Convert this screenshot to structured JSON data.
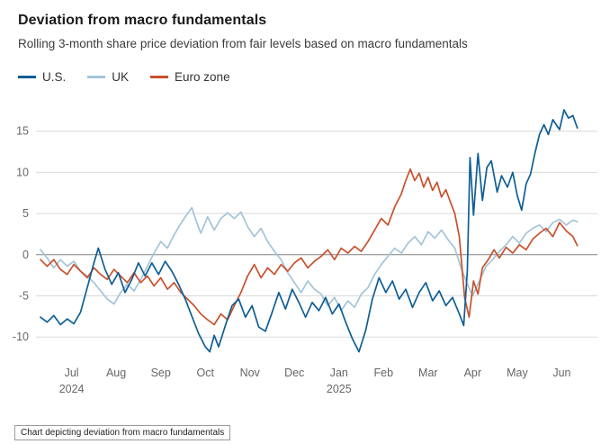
{
  "page": {
    "title": "Deviation from macro fundamentals",
    "subtitle": "Rolling 3-month share price deviation from fair levels based on macro fundamentals",
    "footnote": "Chart depicting deviation from macro fundamentals"
  },
  "colors": {
    "us": "#0f5e95",
    "uk": "#a3c4d9",
    "euro_zone": "#c9502c",
    "grid": "#dadada",
    "zero_line": "#808080",
    "axis_text": "#666666",
    "title_text": "#1a1a1a",
    "subtitle_text": "#3c3c3c"
  },
  "chart_data": {
    "type": "line",
    "title": "Deviation from macro fundamentals",
    "subtitle": "Rolling 3-month share price deviation from fair levels based on macro fundamentals",
    "x_unit": "months since July 2024 (0 = Jul 2024)",
    "x_tick_labels": [
      "Jul",
      "Aug",
      "Sep",
      "Oct",
      "Nov",
      "Dec",
      "Jan",
      "Feb",
      "Mar",
      "Apr",
      "May",
      "Jun"
    ],
    "year_labels": [
      {
        "label": "2024",
        "month_index": 0
      },
      {
        "label": "2025",
        "month_index": 6
      }
    ],
    "y_ticks": [
      -10,
      -5,
      0,
      5,
      10,
      15
    ],
    "ylim": [
      -12.5,
      18.8
    ],
    "xlim": [
      -0.3,
      12.3
    ],
    "grid": "horizontal",
    "legend_position": "top-left",
    "series": [
      {
        "name": "U.S.",
        "color": "#0f5e95",
        "points": [
          [
            -0.2,
            -7.6
          ],
          [
            -0.05,
            -8.2
          ],
          [
            0.1,
            -7.4
          ],
          [
            0.25,
            -8.5
          ],
          [
            0.4,
            -7.8
          ],
          [
            0.55,
            -8.4
          ],
          [
            0.7,
            -7.0
          ],
          [
            0.85,
            -4.0
          ],
          [
            1.0,
            -1.0
          ],
          [
            1.1,
            0.8
          ],
          [
            1.25,
            -1.8
          ],
          [
            1.4,
            -3.6
          ],
          [
            1.55,
            -2.2
          ],
          [
            1.7,
            -4.6
          ],
          [
            1.85,
            -3.0
          ],
          [
            2.0,
            -1.0
          ],
          [
            2.15,
            -2.6
          ],
          [
            2.3,
            -1.0
          ],
          [
            2.45,
            -2.4
          ],
          [
            2.6,
            -0.8
          ],
          [
            2.75,
            -2.0
          ],
          [
            2.9,
            -3.6
          ],
          [
            3.05,
            -5.4
          ],
          [
            3.2,
            -7.5
          ],
          [
            3.35,
            -9.6
          ],
          [
            3.5,
            -11.2
          ],
          [
            3.6,
            -11.8
          ],
          [
            3.7,
            -9.8
          ],
          [
            3.8,
            -11.2
          ],
          [
            3.95,
            -8.6
          ],
          [
            4.1,
            -6.2
          ],
          [
            4.25,
            -5.4
          ],
          [
            4.4,
            -7.6
          ],
          [
            4.55,
            -6.2
          ],
          [
            4.7,
            -8.8
          ],
          [
            4.85,
            -9.3
          ],
          [
            5.0,
            -7.0
          ],
          [
            5.15,
            -4.6
          ],
          [
            5.3,
            -6.6
          ],
          [
            5.45,
            -4.2
          ],
          [
            5.6,
            -5.8
          ],
          [
            5.75,
            -7.6
          ],
          [
            5.9,
            -5.8
          ],
          [
            6.05,
            -6.8
          ],
          [
            6.2,
            -5.2
          ],
          [
            6.35,
            -7.2
          ],
          [
            6.5,
            -6.0
          ],
          [
            6.65,
            -8.2
          ],
          [
            6.8,
            -10.2
          ],
          [
            6.95,
            -11.8
          ],
          [
            7.1,
            -9.2
          ],
          [
            7.25,
            -5.4
          ],
          [
            7.4,
            -2.8
          ],
          [
            7.55,
            -4.6
          ],
          [
            7.7,
            -3.2
          ],
          [
            7.85,
            -5.4
          ],
          [
            8.0,
            -4.2
          ],
          [
            8.15,
            -6.4
          ],
          [
            8.3,
            -4.6
          ],
          [
            8.45,
            -3.4
          ],
          [
            8.6,
            -5.6
          ],
          [
            8.75,
            -4.4
          ],
          [
            8.9,
            -6.2
          ],
          [
            9.05,
            -5.2
          ],
          [
            9.2,
            -7.2
          ],
          [
            9.3,
            -8.6
          ],
          [
            9.38,
            -2.0
          ],
          [
            9.44,
            11.8
          ],
          [
            9.52,
            4.8
          ],
          [
            9.62,
            12.3
          ],
          [
            9.72,
            6.6
          ],
          [
            9.82,
            10.6
          ],
          [
            9.92,
            11.4
          ],
          [
            10.05,
            7.6
          ],
          [
            10.15,
            9.6
          ],
          [
            10.28,
            8.2
          ],
          [
            10.4,
            10.0
          ],
          [
            10.5,
            7.2
          ],
          [
            10.6,
            5.4
          ],
          [
            10.7,
            8.6
          ],
          [
            10.8,
            9.8
          ],
          [
            10.9,
            12.4
          ],
          [
            11.0,
            14.6
          ],
          [
            11.1,
            15.8
          ],
          [
            11.2,
            14.6
          ],
          [
            11.3,
            16.4
          ],
          [
            11.45,
            15.2
          ],
          [
            11.55,
            17.6
          ],
          [
            11.65,
            16.6
          ],
          [
            11.75,
            16.9
          ],
          [
            11.85,
            15.4
          ]
        ]
      },
      {
        "name": "UK",
        "color": "#a3c4d9",
        "points": [
          [
            -0.2,
            0.6
          ],
          [
            -0.05,
            -0.4
          ],
          [
            0.1,
            -1.6
          ],
          [
            0.25,
            -0.6
          ],
          [
            0.4,
            -1.4
          ],
          [
            0.55,
            -0.8
          ],
          [
            0.7,
            -2.0
          ],
          [
            0.85,
            -2.6
          ],
          [
            1.0,
            -3.4
          ],
          [
            1.15,
            -4.4
          ],
          [
            1.3,
            -5.4
          ],
          [
            1.45,
            -6.0
          ],
          [
            1.6,
            -4.6
          ],
          [
            1.75,
            -3.6
          ],
          [
            1.9,
            -4.4
          ],
          [
            2.05,
            -3.0
          ],
          [
            2.2,
            -1.4
          ],
          [
            2.35,
            0.2
          ],
          [
            2.5,
            1.6
          ],
          [
            2.65,
            0.8
          ],
          [
            2.8,
            2.4
          ],
          [
            2.95,
            3.8
          ],
          [
            3.1,
            5.0
          ],
          [
            3.2,
            5.7
          ],
          [
            3.3,
            4.0
          ],
          [
            3.4,
            2.6
          ],
          [
            3.55,
            4.6
          ],
          [
            3.7,
            3.0
          ],
          [
            3.85,
            4.4
          ],
          [
            4.0,
            5.1
          ],
          [
            4.15,
            4.4
          ],
          [
            4.3,
            5.2
          ],
          [
            4.45,
            3.4
          ],
          [
            4.6,
            2.2
          ],
          [
            4.75,
            3.2
          ],
          [
            4.9,
            1.6
          ],
          [
            5.05,
            0.4
          ],
          [
            5.2,
            -0.6
          ],
          [
            5.35,
            -2.2
          ],
          [
            5.5,
            -3.4
          ],
          [
            5.65,
            -4.6
          ],
          [
            5.8,
            -3.2
          ],
          [
            5.95,
            -4.2
          ],
          [
            6.1,
            -4.8
          ],
          [
            6.25,
            -6.2
          ],
          [
            6.4,
            -5.2
          ],
          [
            6.55,
            -6.8
          ],
          [
            6.7,
            -5.6
          ],
          [
            6.85,
            -6.4
          ],
          [
            7.0,
            -4.8
          ],
          [
            7.15,
            -4.0
          ],
          [
            7.3,
            -2.4
          ],
          [
            7.45,
            -1.2
          ],
          [
            7.6,
            -0.2
          ],
          [
            7.75,
            0.8
          ],
          [
            7.9,
            0.2
          ],
          [
            8.05,
            1.4
          ],
          [
            8.2,
            2.2
          ],
          [
            8.35,
            1.2
          ],
          [
            8.5,
            2.8
          ],
          [
            8.65,
            2.0
          ],
          [
            8.8,
            3.0
          ],
          [
            8.95,
            1.8
          ],
          [
            9.1,
            0.8
          ],
          [
            9.25,
            -1.8
          ],
          [
            9.4,
            -3.8
          ],
          [
            9.5,
            -5.0
          ],
          [
            9.65,
            -3.2
          ],
          [
            9.8,
            -1.4
          ],
          [
            9.95,
            -0.6
          ],
          [
            10.1,
            0.4
          ],
          [
            10.25,
            1.2
          ],
          [
            10.4,
            2.2
          ],
          [
            10.55,
            1.4
          ],
          [
            10.7,
            2.6
          ],
          [
            10.85,
            3.2
          ],
          [
            11.0,
            3.6
          ],
          [
            11.15,
            2.8
          ],
          [
            11.3,
            3.9
          ],
          [
            11.45,
            4.3
          ],
          [
            11.6,
            3.6
          ],
          [
            11.75,
            4.2
          ],
          [
            11.85,
            4.0
          ]
        ]
      },
      {
        "name": "Euro zone",
        "color": "#c9502c",
        "points": [
          [
            -0.2,
            -0.6
          ],
          [
            -0.05,
            -1.4
          ],
          [
            0.1,
            -0.6
          ],
          [
            0.25,
            -1.8
          ],
          [
            0.4,
            -2.4
          ],
          [
            0.55,
            -1.2
          ],
          [
            0.7,
            -2.0
          ],
          [
            0.85,
            -2.8
          ],
          [
            1.0,
            -1.6
          ],
          [
            1.15,
            -2.4
          ],
          [
            1.3,
            -3.0
          ],
          [
            1.45,
            -1.8
          ],
          [
            1.6,
            -2.6
          ],
          [
            1.75,
            -3.4
          ],
          [
            1.9,
            -2.2
          ],
          [
            2.05,
            -3.4
          ],
          [
            2.2,
            -2.6
          ],
          [
            2.35,
            -3.8
          ],
          [
            2.5,
            -2.8
          ],
          [
            2.65,
            -4.2
          ],
          [
            2.8,
            -3.4
          ],
          [
            2.95,
            -4.6
          ],
          [
            3.1,
            -5.4
          ],
          [
            3.25,
            -6.2
          ],
          [
            3.4,
            -7.2
          ],
          [
            3.55,
            -7.9
          ],
          [
            3.7,
            -8.5
          ],
          [
            3.85,
            -7.2
          ],
          [
            4.0,
            -7.9
          ],
          [
            4.15,
            -6.2
          ],
          [
            4.3,
            -4.6
          ],
          [
            4.45,
            -2.6
          ],
          [
            4.6,
            -1.2
          ],
          [
            4.75,
            -2.8
          ],
          [
            4.9,
            -1.6
          ],
          [
            5.05,
            -2.4
          ],
          [
            5.2,
            -1.2
          ],
          [
            5.35,
            -2.0
          ],
          [
            5.5,
            -1.0
          ],
          [
            5.65,
            -0.4
          ],
          [
            5.8,
            -1.6
          ],
          [
            5.95,
            -0.8
          ],
          [
            6.1,
            -0.2
          ],
          [
            6.25,
            0.6
          ],
          [
            6.4,
            -0.6
          ],
          [
            6.55,
            0.8
          ],
          [
            6.7,
            0.2
          ],
          [
            6.85,
            1.0
          ],
          [
            7.0,
            0.4
          ],
          [
            7.15,
            1.6
          ],
          [
            7.3,
            3.0
          ],
          [
            7.45,
            4.4
          ],
          [
            7.6,
            3.6
          ],
          [
            7.75,
            5.8
          ],
          [
            7.9,
            7.4
          ],
          [
            8.0,
            9.0
          ],
          [
            8.1,
            10.4
          ],
          [
            8.2,
            9.0
          ],
          [
            8.3,
            9.9
          ],
          [
            8.4,
            8.2
          ],
          [
            8.5,
            9.4
          ],
          [
            8.6,
            7.8
          ],
          [
            8.7,
            8.8
          ],
          [
            8.8,
            7.0
          ],
          [
            8.9,
            7.9
          ],
          [
            9.0,
            6.4
          ],
          [
            9.1,
            5.0
          ],
          [
            9.2,
            2.2
          ],
          [
            9.32,
            -5.2
          ],
          [
            9.42,
            -7.6
          ],
          [
            9.52,
            -3.2
          ],
          [
            9.62,
            -4.8
          ],
          [
            9.72,
            -1.6
          ],
          [
            9.85,
            -0.6
          ],
          [
            9.98,
            0.6
          ],
          [
            10.1,
            -0.4
          ],
          [
            10.25,
            0.9
          ],
          [
            10.4,
            0.2
          ],
          [
            10.55,
            1.2
          ],
          [
            10.7,
            0.6
          ],
          [
            10.85,
            1.9
          ],
          [
            11.0,
            2.6
          ],
          [
            11.15,
            3.2
          ],
          [
            11.3,
            2.2
          ],
          [
            11.45,
            3.9
          ],
          [
            11.6,
            2.9
          ],
          [
            11.75,
            2.2
          ],
          [
            11.85,
            1.1
          ]
        ]
      }
    ]
  }
}
